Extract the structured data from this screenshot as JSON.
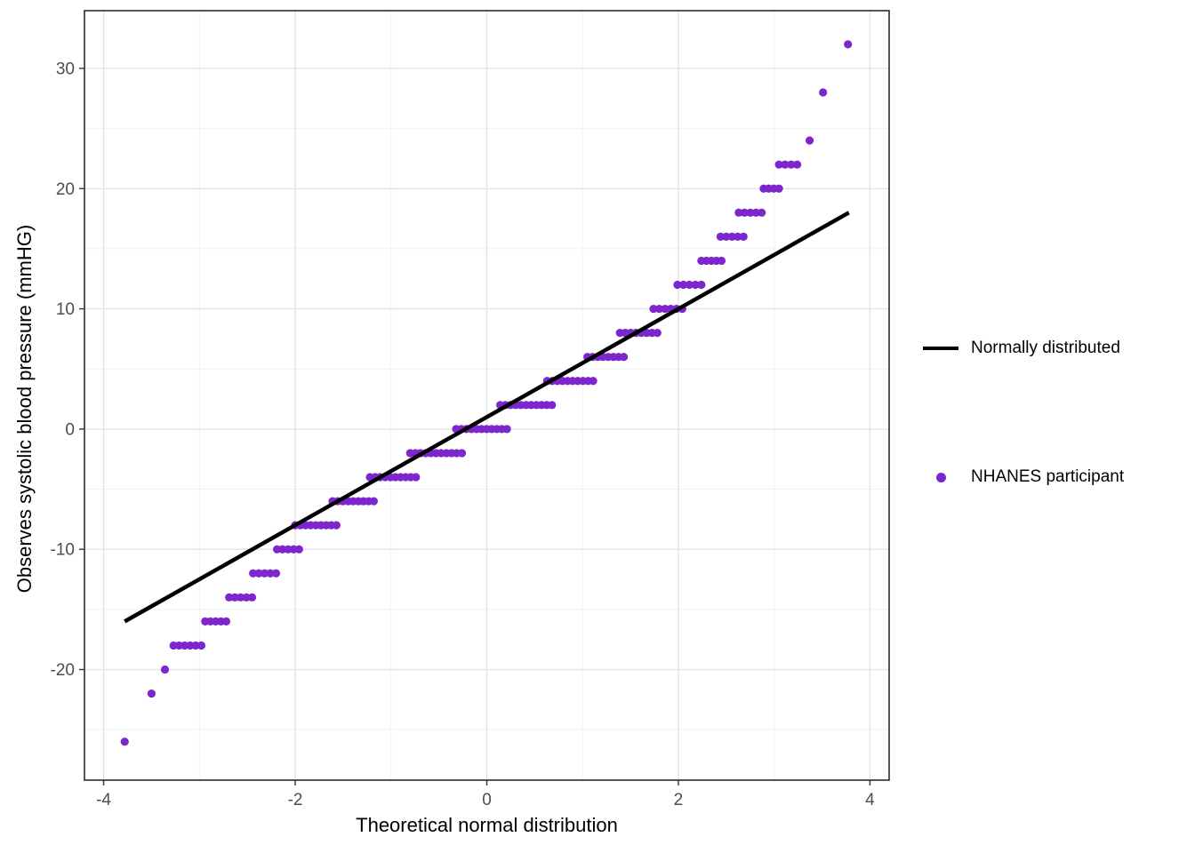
{
  "figure": {
    "background": "#ffffff"
  },
  "legend": {
    "items": [
      {
        "type": "line",
        "label": "Normally distributed",
        "color": "#000000"
      },
      {
        "type": "point",
        "label": "NHANES participant",
        "color": "#7D26CD"
      }
    ]
  },
  "chart_data": {
    "type": "scatter",
    "title": "",
    "xlabel": "Theoretical normal distribution",
    "ylabel": "Observes systolic blood pressure (mmHG)",
    "xlim": [
      -4.2,
      4.2
    ],
    "ylim": [
      -29.2,
      34.8
    ],
    "x_ticks": [
      -4,
      -2,
      0,
      2,
      4
    ],
    "y_ticks": [
      -20,
      -10,
      0,
      10,
      20,
      30
    ],
    "x_minor_ticks": [
      -3,
      -1,
      1,
      3
    ],
    "y_minor_ticks": [
      -25,
      -15,
      -5,
      5,
      15,
      25
    ],
    "grid": true,
    "legend_position": "right",
    "panel_border_color": "#2b2b2b",
    "grid_major_color": "#e3e3e3",
    "grid_minor_color": "#f2f2f2",
    "tick_label_color": "#4d4d4d",
    "reference_line": {
      "name": "Normally distributed",
      "color": "#000000",
      "width": 4.5,
      "x": [
        -3.78,
        3.78
      ],
      "y": [
        -16,
        18
      ]
    },
    "points": {
      "name": "NHANES participant",
      "color": "#7D26CD",
      "radius": 4.6,
      "segments": [
        {
          "y": -26,
          "x_start": -3.78,
          "x_end": -3.78
        },
        {
          "y": -22,
          "x_start": -3.5,
          "x_end": -3.5
        },
        {
          "y": -20,
          "x_start": -3.36,
          "x_end": -3.36
        },
        {
          "y": -18,
          "x_start": -3.27,
          "x_end": -2.98
        },
        {
          "y": -16,
          "x_start": -2.94,
          "x_end": -2.72
        },
        {
          "y": -14,
          "x_start": -2.69,
          "x_end": -2.45
        },
        {
          "y": -12,
          "x_start": -2.44,
          "x_end": -2.2
        },
        {
          "y": -10,
          "x_start": -2.19,
          "x_end": -1.96
        },
        {
          "y": -8,
          "x_start": -2.0,
          "x_end": -1.57
        },
        {
          "y": -6,
          "x_start": -1.61,
          "x_end": -1.18
        },
        {
          "y": -4,
          "x_start": -1.22,
          "x_end": -0.74
        },
        {
          "y": -2,
          "x_start": -0.8,
          "x_end": -0.26
        },
        {
          "y": 0,
          "x_start": -0.32,
          "x_end": 0.21
        },
        {
          "y": 2,
          "x_start": 0.14,
          "x_end": 0.68
        },
        {
          "y": 4,
          "x_start": 0.63,
          "x_end": 1.11
        },
        {
          "y": 6,
          "x_start": 1.05,
          "x_end": 1.43
        },
        {
          "y": 8,
          "x_start": 1.39,
          "x_end": 1.78
        },
        {
          "y": 10,
          "x_start": 1.74,
          "x_end": 2.04
        },
        {
          "y": 12,
          "x_start": 1.99,
          "x_end": 2.24
        },
        {
          "y": 14,
          "x_start": 2.24,
          "x_end": 2.45
        },
        {
          "y": 16,
          "x_start": 2.44,
          "x_end": 2.68
        },
        {
          "y": 18,
          "x_start": 2.63,
          "x_end": 2.87
        },
        {
          "y": 20,
          "x_start": 2.89,
          "x_end": 3.05
        },
        {
          "y": 22,
          "x_start": 3.05,
          "x_end": 3.24
        },
        {
          "y": 24,
          "x_start": 3.37,
          "x_end": 3.37
        },
        {
          "y": 28,
          "x_start": 3.51,
          "x_end": 3.51
        },
        {
          "y": 32,
          "x_start": 3.77,
          "x_end": 3.77
        }
      ]
    }
  }
}
